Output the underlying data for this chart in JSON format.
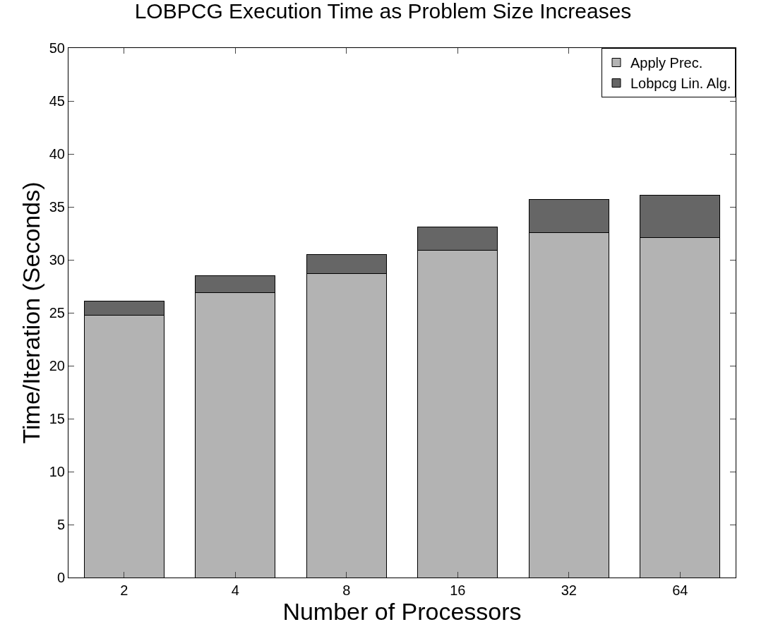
{
  "chart_data": {
    "type": "bar",
    "title": "LOBPCG Execution Time as Problem Size Increases",
    "xlabel": "Number of Processors",
    "ylabel": "Time/Iteration (Seconds)",
    "categories": [
      "2",
      "4",
      "8",
      "16",
      "32",
      "64"
    ],
    "stacked": true,
    "series": [
      {
        "name": "Apply Prec.",
        "color": "#b3b3b3",
        "values": [
          24.8,
          26.9,
          28.7,
          30.9,
          32.6,
          32.1
        ]
      },
      {
        "name": "Lobpcg Lin. Alg.",
        "color": "#666666",
        "values": [
          1.3,
          1.6,
          1.8,
          2.2,
          3.1,
          4.0
        ]
      }
    ],
    "ylim": [
      0,
      50
    ],
    "yticks": [
      0,
      5,
      10,
      15,
      20,
      25,
      30,
      35,
      40,
      45,
      50
    ],
    "grid": false,
    "legend": "top right"
  }
}
